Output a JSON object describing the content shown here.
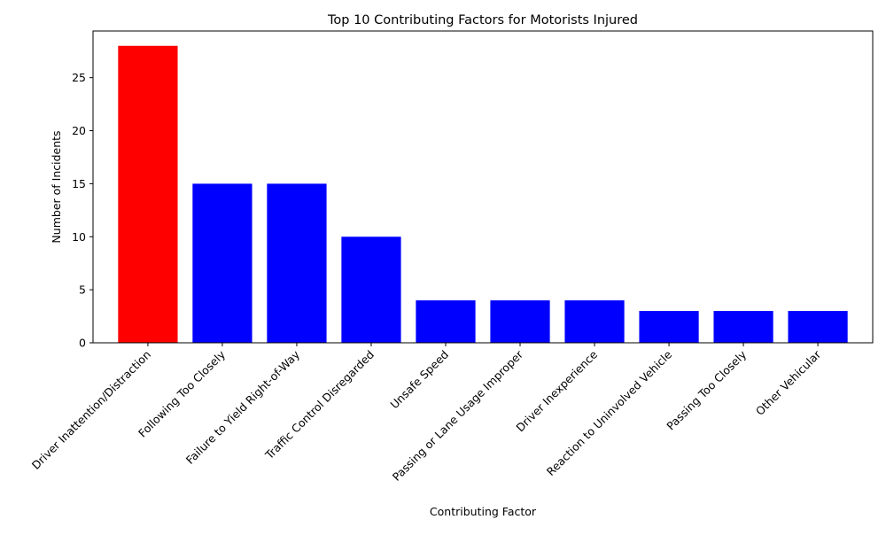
{
  "chart_data": {
    "type": "bar",
    "title": "Top 10 Contributing Factors for Motorists Injured",
    "xlabel": "Contributing Factor",
    "ylabel": "Number of Incidents",
    "categories": [
      "Driver Inattention/Distraction",
      "Following Too Closely",
      "Failure to Yield Right-of-Way",
      "Traffic Control Disregarded",
      "Unsafe Speed",
      "Passing or Lane Usage Improper",
      "Driver Inexperience",
      "Reaction to Uninvolved Vehicle",
      "Passing Too Closely",
      "Other Vehicular"
    ],
    "values": [
      28,
      15,
      15,
      10,
      4,
      4,
      4,
      3,
      3,
      3
    ],
    "bar_colors": [
      "#ff0000",
      "#0000ff",
      "#0000ff",
      "#0000ff",
      "#0000ff",
      "#0000ff",
      "#0000ff",
      "#0000ff",
      "#0000ff",
      "#0000ff"
    ],
    "ylim": [
      0,
      29.4
    ],
    "yticks": [
      0,
      5,
      10,
      15,
      20,
      25
    ],
    "grid": false,
    "legend": "none"
  }
}
